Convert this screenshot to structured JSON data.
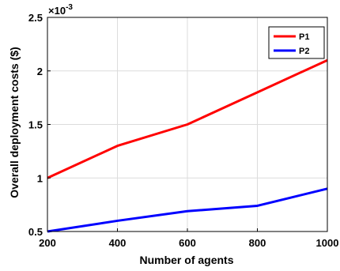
{
  "chart_data": {
    "type": "line",
    "title": "",
    "xlabel": "Number of agents",
    "ylabel": "Overall deployment costs ($)",
    "y_exponent_label": "×10",
    "y_exponent_power": "-3",
    "x": [
      200,
      400,
      600,
      800,
      1000
    ],
    "xlim": [
      200,
      1000
    ],
    "ylim": [
      0.5,
      2.5
    ],
    "x_ticks": [
      "200",
      "400",
      "600",
      "800",
      "1000"
    ],
    "y_ticks": [
      "0.5",
      "1",
      "1.5",
      "2",
      "2.5"
    ],
    "grid": true,
    "legend_position": "top-right",
    "series": [
      {
        "name": "P1",
        "color": "#ff0000",
        "values": [
          1.0,
          1.3,
          1.5,
          1.8,
          2.1
        ]
      },
      {
        "name": "P2",
        "color": "#0000ff",
        "values": [
          0.5,
          0.6,
          0.69,
          0.74,
          0.9
        ]
      }
    ]
  }
}
